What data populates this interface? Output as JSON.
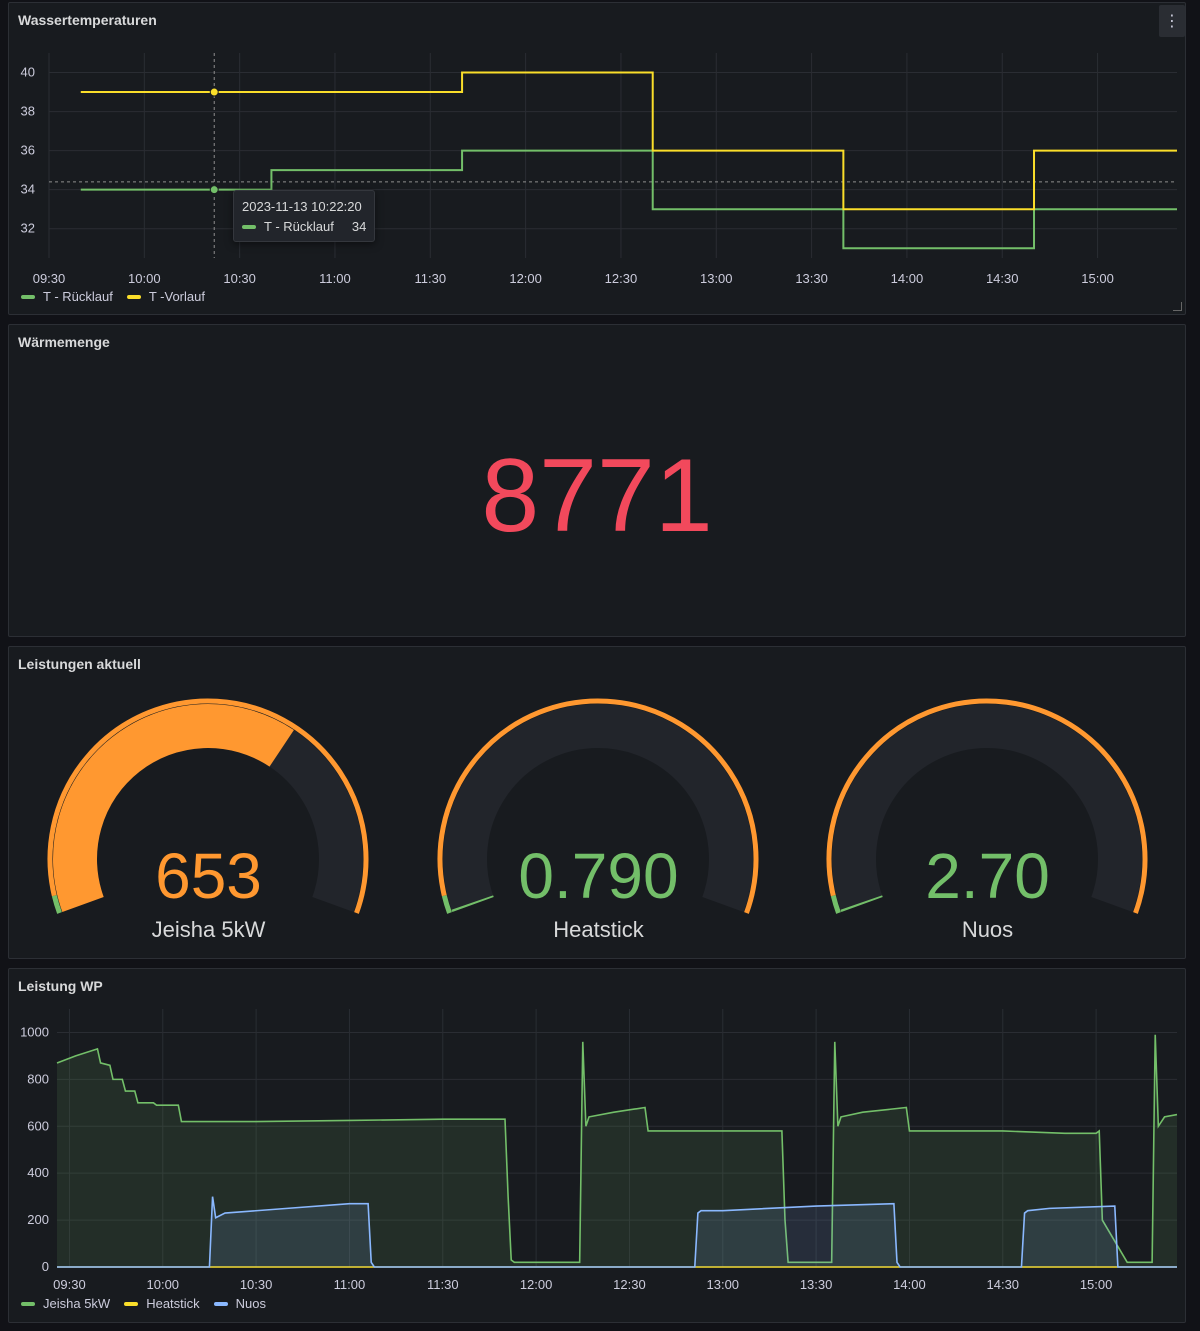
{
  "panels": {
    "wasser": {
      "title": "Wassertemperaturen",
      "menu_icon": "kebab-icon",
      "tooltip": {
        "time": "2023-11-13 10:22:20",
        "series": "T - Rücklauf",
        "value": "34"
      },
      "legend": [
        {
          "label": "T - Rücklauf",
          "color": "#73bf69"
        },
        {
          "label": "T -Vorlauf",
          "color": "#fade2a"
        }
      ]
    },
    "waerme": {
      "title": "Wärmemenge",
      "value": "8771",
      "color": "#f2495c"
    },
    "leistungen": {
      "title": "Leistungen aktuell",
      "gauges": [
        {
          "value": "653",
          "label": "Jeisha 5kW",
          "fraction": 0.653,
          "color": "#ff9830"
        },
        {
          "value": "0.790",
          "label": "Heatstick",
          "fraction": 0.0008,
          "color": "#73bf69"
        },
        {
          "value": "2.70",
          "label": "Nuos",
          "fraction": 0.0027,
          "color": "#73bf69"
        }
      ]
    },
    "leistung_wp": {
      "title": "Leistung WP",
      "legend": [
        {
          "label": "Jeisha 5kW",
          "color": "#73bf69"
        },
        {
          "label": "Heatstick",
          "color": "#fade2a"
        },
        {
          "label": "Nuos",
          "color": "#8ab8ff"
        }
      ]
    }
  },
  "chart_data": [
    {
      "type": "line",
      "title": "Wassertemperaturen",
      "x_ticks": [
        "09:30",
        "10:00",
        "10:30",
        "11:00",
        "11:30",
        "12:00",
        "12:30",
        "13:00",
        "13:30",
        "14:00",
        "14:30",
        "15:00"
      ],
      "y_ticks": [
        32,
        34,
        36,
        38,
        40
      ],
      "ylim": [
        30.5,
        41
      ],
      "xlim": [
        "09:30",
        "15:25"
      ],
      "grid": true,
      "legend_position": "bottom-left",
      "series": [
        {
          "name": "T - Rücklauf",
          "color": "#73bf69",
          "x": [
            "09:40",
            "10:40",
            "11:40",
            "12:40",
            "13:40",
            "14:40",
            "15:25"
          ],
          "values": [
            34,
            35,
            36,
            33,
            31,
            33,
            33
          ]
        },
        {
          "name": "T -Vorlauf",
          "color": "#fade2a",
          "x": [
            "09:40",
            "11:40",
            "12:40",
            "13:40",
            "14:40",
            "15:25"
          ],
          "values": [
            39,
            40,
            36,
            33,
            36,
            36
          ]
        }
      ]
    },
    {
      "type": "area",
      "title": "Leistung WP",
      "x_ticks": [
        "09:30",
        "10:00",
        "10:30",
        "11:00",
        "11:30",
        "12:00",
        "12:30",
        "13:00",
        "13:30",
        "14:00",
        "14:30",
        "15:00"
      ],
      "y_ticks": [
        0,
        200,
        400,
        600,
        800,
        1000
      ],
      "ylim": [
        0,
        1100
      ],
      "xlim": [
        "09:26",
        "15:26"
      ],
      "grid": true,
      "legend_position": "bottom-left",
      "series": [
        {
          "name": "Jeisha 5kW",
          "color": "#73bf69",
          "x": [
            "09:26",
            "09:32",
            "09:39",
            "09:40",
            "09:43",
            "09:44",
            "09:47",
            "09:48",
            "09:51",
            "09:52",
            "09:57",
            "09:58",
            "10:05",
            "10:06",
            "10:15",
            "10:30",
            "11:00",
            "11:30",
            "11:50",
            "11:51",
            "11:52",
            "11:53",
            "12:00",
            "12:10",
            "12:14",
            "12:15",
            "12:16",
            "12:17",
            "12:25",
            "12:35",
            "12:36",
            "12:40",
            "13:00",
            "13:10",
            "13:19",
            "13:20",
            "13:21",
            "13:22",
            "13:35",
            "13:36",
            "13:37",
            "13:38",
            "13:45",
            "13:59",
            "14:00",
            "14:05",
            "14:20",
            "14:30",
            "14:50",
            "15:00",
            "15:01",
            "15:02",
            "15:10",
            "15:15",
            "15:16",
            "15:18",
            "15:19",
            "15:20",
            "15:22",
            "15:26"
          ],
          "values": [
            870,
            900,
            930,
            870,
            860,
            800,
            800,
            750,
            750,
            700,
            700,
            690,
            690,
            620,
            620,
            620,
            625,
            630,
            630,
            300,
            30,
            20,
            20,
            20,
            20,
            960,
            600,
            640,
            660,
            680,
            580,
            580,
            580,
            580,
            580,
            200,
            20,
            20,
            20,
            960,
            600,
            640,
            660,
            680,
            580,
            580,
            580,
            580,
            570,
            570,
            580,
            200,
            20,
            20,
            20,
            20,
            990,
            600,
            640,
            650
          ]
        },
        {
          "name": "Heatstick",
          "color": "#fade2a",
          "x": [
            "09:26",
            "15:26"
          ],
          "values": [
            0,
            0
          ]
        },
        {
          "name": "Nuos",
          "color": "#8ab8ff",
          "x": [
            "09:26",
            "10:15",
            "10:16",
            "10:17",
            "10:20",
            "10:40",
            "11:00",
            "11:06",
            "11:07",
            "11:08",
            "12:51",
            "12:52",
            "12:53",
            "13:00",
            "13:30",
            "13:55",
            "13:56",
            "13:57",
            "14:36",
            "14:37",
            "14:38",
            "14:45",
            "15:06",
            "15:07",
            "15:08",
            "15:26"
          ],
          "values": [
            0,
            0,
            300,
            210,
            230,
            250,
            270,
            270,
            20,
            0,
            0,
            230,
            240,
            240,
            260,
            270,
            20,
            0,
            0,
            230,
            240,
            250,
            260,
            0,
            0,
            0
          ]
        }
      ]
    }
  ]
}
